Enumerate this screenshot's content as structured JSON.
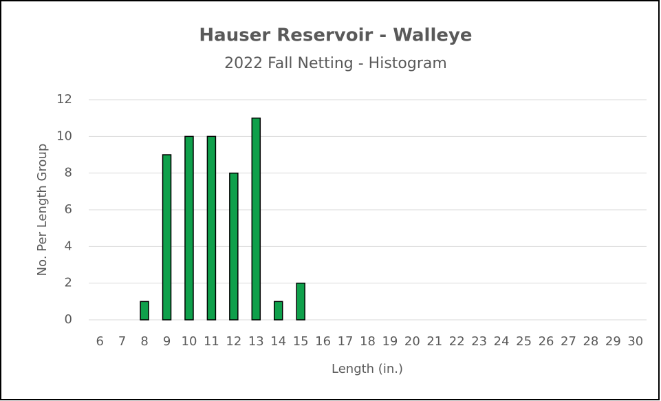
{
  "chart_data": {
    "type": "bar",
    "title": "Hauser Reservoir - Walleye",
    "subtitle": "2022 Fall Netting - Histogram",
    "x_label": "Length (in.)",
    "y_label": "No. Per Length Group",
    "categories": [
      6,
      7,
      8,
      9,
      10,
      11,
      12,
      13,
      14,
      15,
      16,
      17,
      18,
      19,
      20,
      21,
      22,
      23,
      24,
      25,
      26,
      27,
      28,
      29,
      30
    ],
    "values": [
      0,
      0,
      1,
      9,
      10,
      10,
      8,
      11,
      1,
      2,
      0,
      0,
      0,
      0,
      0,
      0,
      0,
      0,
      0,
      0,
      0,
      0,
      0,
      0,
      0
    ],
    "color": "#0fa04b",
    "ylim": [
      0,
      12
    ],
    "yticks": [
      0,
      2,
      4,
      6,
      8,
      10,
      12
    ],
    "grid": true
  }
}
